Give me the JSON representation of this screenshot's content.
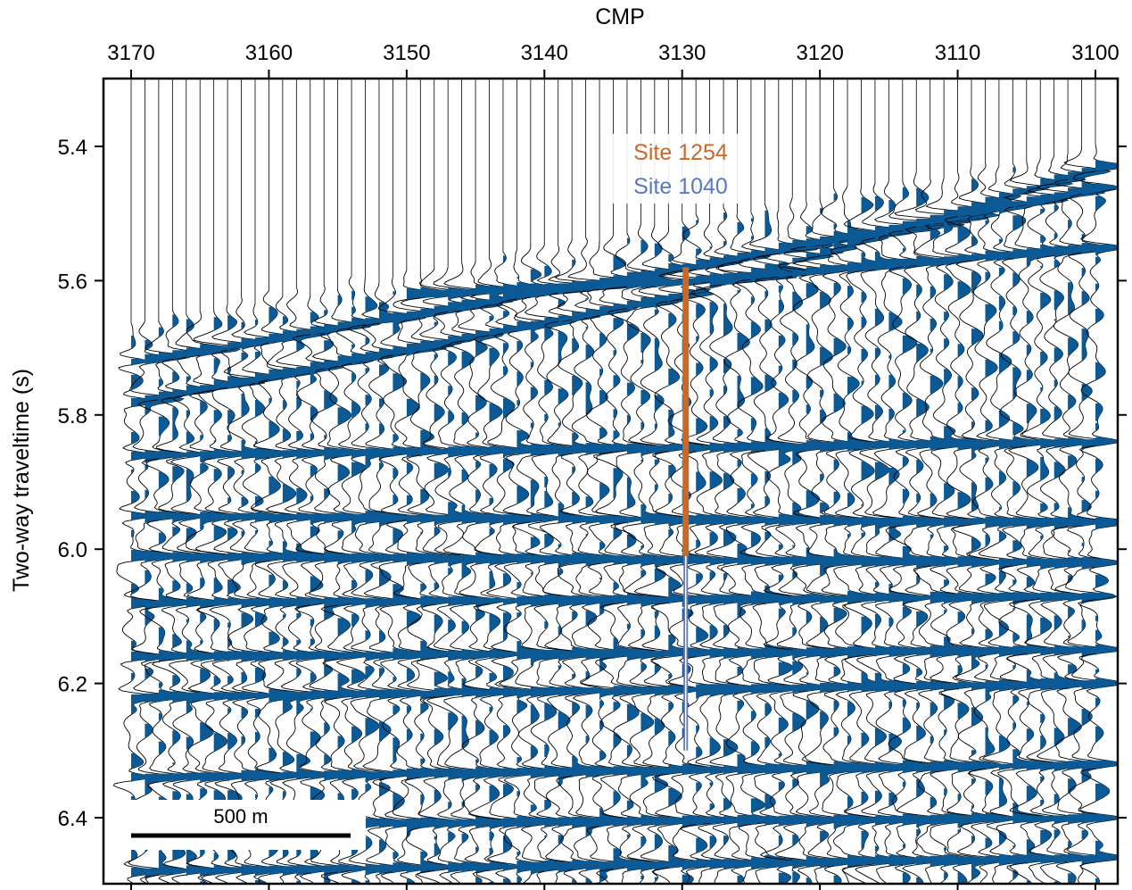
{
  "chart_data": {
    "type": "seismic-section",
    "xlabel": "CMP",
    "ylabel": "Two-way traveltime (s)",
    "x_ticks": [
      3170,
      3160,
      3150,
      3140,
      3130,
      3120,
      3110,
      3100
    ],
    "y_ticks": [
      "5.4",
      "5.6",
      "5.8",
      "6.0",
      "6.2",
      "6.4"
    ],
    "xlim": [
      3170,
      3100
    ],
    "ylim": [
      5.3,
      6.5
    ],
    "x_reversed": true,
    "y_reversed": true,
    "trace_range": [
      3100,
      3170
    ],
    "trace_spacing_cmp": 1,
    "fill_color": "#0b5a96",
    "reflectors": [
      {
        "x": [
          3170,
          3130,
          3100
        ],
        "y": [
          5.78,
          5.62,
          5.43
        ]
      },
      {
        "x": [
          3170,
          3130,
          3100
        ],
        "y": [
          5.72,
          5.58,
          5.46
        ]
      },
      {
        "x": [
          3150,
          3130,
          3100
        ],
        "y": [
          5.62,
          5.6,
          5.55
        ]
      },
      {
        "x": [
          3170,
          3100
        ],
        "y": [
          5.86,
          5.84
        ]
      },
      {
        "x": [
          3170,
          3100
        ],
        "y": [
          5.95,
          5.96
        ]
      },
      {
        "x": [
          3170,
          3100
        ],
        "y": [
          6.01,
          6.02
        ]
      },
      {
        "x": [
          3170,
          3100
        ],
        "y": [
          6.08,
          6.07
        ]
      },
      {
        "x": [
          3170,
          3100
        ],
        "y": [
          6.16,
          6.15
        ]
      },
      {
        "x": [
          3170,
          3100
        ],
        "y": [
          6.22,
          6.2
        ]
      },
      {
        "x": [
          3170,
          3100
        ],
        "y": [
          6.34,
          6.32
        ]
      },
      {
        "x": [
          3170,
          3100
        ],
        "y": [
          6.41,
          6.4
        ]
      },
      {
        "x": [
          3170,
          3100
        ],
        "y": [
          6.48,
          6.46
        ]
      }
    ],
    "sites": [
      {
        "name": "Site 1254",
        "cmp": 3130,
        "y_top": 5.58,
        "y_bottom": 6.01,
        "color": "#c8692a"
      },
      {
        "name": "Site 1040",
        "cmp": 3130,
        "y_top": 6.01,
        "y_bottom": 6.3,
        "color": "#5a78c2"
      }
    ],
    "scale_bar": {
      "label": "500 m"
    }
  }
}
